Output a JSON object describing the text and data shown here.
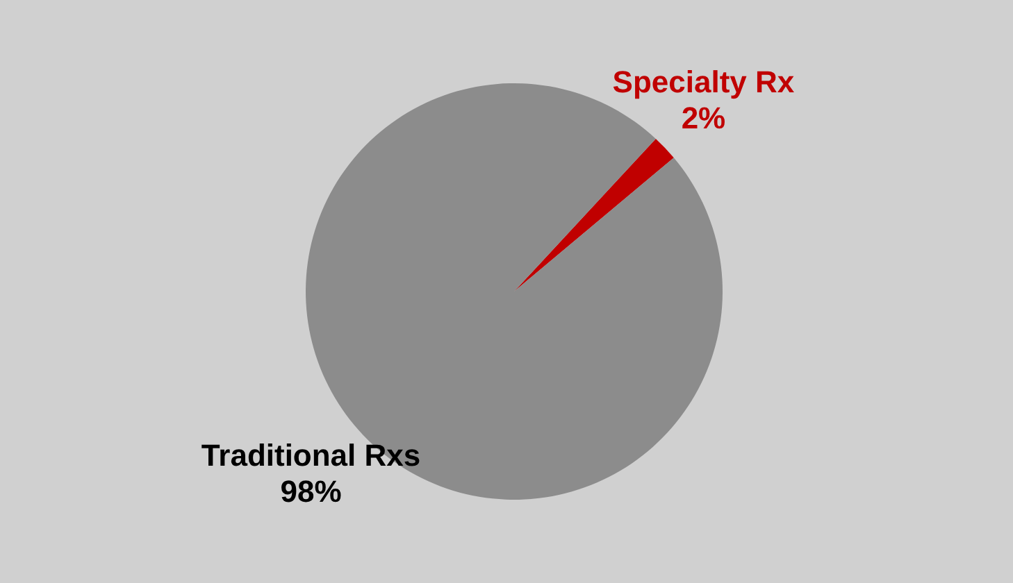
{
  "chart_data": {
    "type": "pie",
    "categories": [
      "Specialty Rx",
      "Traditional Rxs"
    ],
    "values": [
      2,
      98
    ],
    "value_labels": [
      "2%",
      "98%"
    ],
    "colors": [
      "#c00000",
      "#8c8c8c"
    ],
    "legend": false
  }
}
